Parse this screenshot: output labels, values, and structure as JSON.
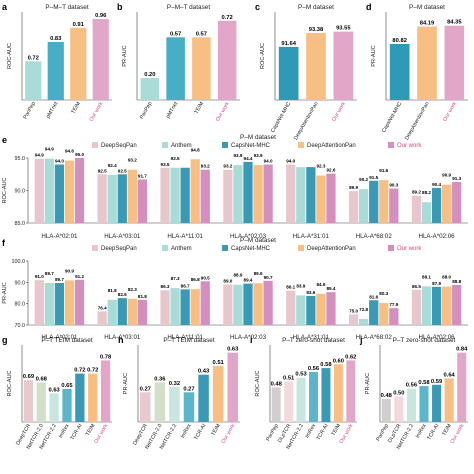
{
  "figure": {
    "panels": [
      {
        "id": "a",
        "letter": "a",
        "title": "P–M–T dataset",
        "ylabel": "ROC-AUC",
        "categories": [
          "PanPep",
          "pMTnet",
          "TEIM",
          "Our work"
        ],
        "values": [
          0.72,
          0.83,
          0.91,
          0.96
        ],
        "labels": [
          "0.72",
          "0.83",
          "0.91",
          "0.96"
        ],
        "colors": [
          "#a9dcd6",
          "#47aec6",
          "#f7bf83",
          "#e2a6c8"
        ],
        "highlight_last": true,
        "ylim": [
          0.5,
          1.0
        ]
      },
      {
        "id": "b",
        "letter": "b",
        "title": "P–M–T dataset",
        "ylabel": "PR-AUC",
        "categories": [
          "PanPep",
          "pMTnet",
          "TEIM",
          "Our work"
        ],
        "values": [
          0.2,
          0.57,
          0.57,
          0.72
        ],
        "labels": [
          "0.20",
          "0.57",
          "0.57",
          "0.72"
        ],
        "colors": [
          "#a9dcd6",
          "#47aec6",
          "#f7bf83",
          "#e2a6c8"
        ],
        "highlight_last": true,
        "ylim": [
          0.0,
          0.8
        ]
      },
      {
        "id": "c",
        "letter": "c",
        "title": "P–M dataset",
        "ylabel": "ROC-AUC",
        "categories": [
          "CapsNet-MHC",
          "DeepAttentionPan",
          "Our work"
        ],
        "values": [
          91.64,
          93.38,
          93.55
        ],
        "labels": [
          "91.64",
          "93.38",
          "93.55"
        ],
        "colors": [
          "#2f9ab8",
          "#f7bf83",
          "#e2a6c8"
        ],
        "highlight_last": true,
        "ylim": [
          85,
          96
        ]
      },
      {
        "id": "d",
        "letter": "d",
        "title": "P–M dataset",
        "ylabel": "PR-AUC",
        "categories": [
          "CapsNet-MHC",
          "DeepAttentionPan",
          "Our work"
        ],
        "values": [
          80.82,
          84.19,
          84.35
        ],
        "labels": [
          "80.82",
          "84.19",
          "84.35"
        ],
        "colors": [
          "#2f9ab8",
          "#f7bf83",
          "#e2a6c8"
        ],
        "highlight_last": true,
        "ylim": [
          70,
          87
        ]
      },
      {
        "id": "g",
        "letter": "g",
        "title": "P–T TEIM dataset",
        "ylabel": "ROC-AUC",
        "categories": [
          "DeepTCR",
          "NetTCR-2.0",
          "NetTCR-2.2",
          "ImRex",
          "TCR-AI",
          "TEIM",
          "Our work"
        ],
        "values": [
          0.69,
          0.68,
          0.63,
          0.65,
          0.72,
          0.72,
          0.78
        ],
        "labels": [
          "0.69",
          "0.68",
          "0.63",
          "0.65",
          "0.72",
          "0.72",
          "0.78"
        ],
        "colors": [
          "#e8c9ce",
          "#d2dfc9",
          "#c8e5df",
          "#5db5c9",
          "#3a99b4",
          "#f7bf83",
          "#e2a6c8"
        ],
        "highlight_last": true,
        "ylim": [
          0.5,
          0.85
        ]
      },
      {
        "id": "h",
        "letter": "h",
        "title": "P–T TEIM dataset",
        "ylabel": "PR-AUC",
        "categories": [
          "DeepTCR",
          "NetTCR-2.0",
          "NetTCR-2.2",
          "ImRex",
          "TCR-AI",
          "TEIM",
          "Our work"
        ],
        "values": [
          0.27,
          0.36,
          0.32,
          0.27,
          0.43,
          0.51,
          0.63
        ],
        "labels": [
          "0.27",
          "0.36",
          "0.32",
          "0.27",
          "0.43",
          "0.51",
          "0.63"
        ],
        "colors": [
          "#e8c9ce",
          "#d2dfc9",
          "#c8e5df",
          "#5db5c9",
          "#3a99b4",
          "#f7bf83",
          "#e2a6c8"
        ],
        "highlight_last": true,
        "ylim": [
          0.0,
          0.7
        ]
      },
      {
        "id": "i",
        "letter": "i",
        "title": "P–T zero-shot dataset",
        "ylabel": "ROC-AUC",
        "categories": [
          "PanPep",
          "DLpTCR",
          "NetTCR-2.2",
          "ImRex",
          "TCR-AI",
          "TEIM",
          "Our work"
        ],
        "values": [
          0.48,
          0.51,
          0.53,
          0.56,
          0.58,
          0.6,
          0.62
        ],
        "labels": [
          "0.48",
          "0.51",
          "0.53",
          "0.56",
          "0.58",
          "0.60",
          "0.62"
        ],
        "colors": [
          "#cfcfcf",
          "#f4d8dc",
          "#c8e5df",
          "#5db5c9",
          "#3a99b4",
          "#f7bf83",
          "#e2a6c8"
        ],
        "highlight_last": true,
        "ylim": [
          0.3,
          0.7
        ]
      },
      {
        "id": "j",
        "letter": "j",
        "title": "P–T zero-shot dataset",
        "ylabel": "PR-AUC",
        "categories": [
          "PanPep",
          "DLpTCR",
          "NetTCR-2.2",
          "ImRex",
          "TCR-AI",
          "TEIM",
          "Our work"
        ],
        "values": [
          0.48,
          0.5,
          0.56,
          0.58,
          0.59,
          0.64,
          0.84
        ],
        "labels": [
          "0.48",
          "0.50",
          "0.56",
          "0.58",
          "0.59",
          "0.64",
          "0.84"
        ],
        "colors": [
          "#cfcfcf",
          "#f4d8dc",
          "#c8e5df",
          "#5db5c9",
          "#3a99b4",
          "#f7bf83",
          "#e2a6c8"
        ],
        "highlight_last": true,
        "ylim": [
          0.3,
          0.9
        ]
      }
    ],
    "grouped": [
      {
        "id": "e",
        "letter": "e",
        "title": "P–M dataset",
        "ylabel": "ROC-AUC",
        "legend": [
          "DeepSeqPan",
          "Anthem",
          "CapsNet-MHC",
          "DeepAttentionPan",
          "Our work"
        ],
        "legend_colors": [
          "#e7c7cc",
          "#a9dcd6",
          "#3a99b4",
          "#f7bf83",
          "#d58fbf"
        ],
        "categories": [
          "HLA-A*02:01",
          "HLA-A*03:01",
          "HLA-A*11:01",
          "HLA-A*02:03",
          "HLA-A*31:01",
          "HLA-A*68:02",
          "HLA-A*02:06"
        ],
        "values": [
          [
            94.9,
            94.9,
            94.0,
            94.6,
            95.0
          ],
          [
            92.5,
            92.4,
            92.5,
            93.2,
            91.7
          ],
          [
            93.5,
            93.5,
            93.5,
            94.8,
            93.2
          ],
          [
            93.2,
            93.9,
            94.4,
            93.9,
            94.0
          ],
          [
            94.0,
            93.6,
            93.6,
            92.3,
            92.6
          ],
          [
            89.9,
            90.2,
            91.5,
            91.6,
            90.3
          ],
          [
            89.2,
            88.2,
            90.4,
            90.9,
            91.3
          ]
        ],
        "labels": [
          [
            "94.9",
            "94.9",
            "94.0",
            "94.6",
            "95.0"
          ],
          [
            "92.5",
            "92.4",
            "92.5",
            "93.2",
            "91.7"
          ],
          [
            "93.5",
            "93.5",
            "",
            "94.8",
            "93.2"
          ],
          [
            "93.2",
            "93.9",
            "94.4",
            "93.9",
            "94.0"
          ],
          [
            "94.0",
            "",
            "",
            "92.3",
            "92.6"
          ],
          [
            "89.9",
            "90.2",
            "91.5",
            "91.6",
            "90.3"
          ],
          [
            "89.2",
            "88.2",
            "90.4",
            "90.9",
            "91.3"
          ]
        ],
        "ylim": [
          85.0,
          95.0
        ],
        "yticks": [
          85.0,
          90.0,
          95.0
        ],
        "ytick_labels": [
          "85.0",
          "90.0",
          "95.0"
        ]
      },
      {
        "id": "f",
        "letter": "f",
        "title": "P–M dataset",
        "ylabel": "PR-AUC",
        "legend": [
          "DeepSeqPan",
          "Anthem",
          "CapsNet-MHC",
          "DeepAttentionPan",
          "Our work"
        ],
        "legend_colors": [
          "#e7c7cc",
          "#a9dcd6",
          "#3a99b4",
          "#f7bf83",
          "#d58fbf"
        ],
        "categories": [
          "HLA-A*02:01",
          "HLA-A*03:01",
          "HLA-A*11:01",
          "HLA-A*02:03",
          "HLA-A*31:01",
          "HLA-A*68:02",
          "HLA-A*02:06"
        ],
        "values": [
          [
            91.0,
            89.7,
            89.7,
            90.9,
            91.2
          ],
          [
            76.4,
            81.8,
            82.6,
            82.3,
            81.8
          ],
          [
            86.3,
            87.3,
            86.7,
            86.8,
            90.5
          ],
          [
            89.0,
            88.9,
            89.4,
            89.6,
            90.7
          ],
          [
            86.1,
            83.9,
            83.6,
            84.6,
            85.4
          ],
          [
            75.0,
            72.8,
            81.6,
            80.3,
            77.9
          ],
          [
            86.5,
            88.1,
            87.9,
            88.0,
            88.8
          ]
        ],
        "labels": [
          [
            "91.0",
            "89.7",
            "89.7",
            "90.9",
            "91.2"
          ],
          [
            "76.4",
            "81.8",
            "82.6",
            "82.3",
            "81.8"
          ],
          [
            "86.3",
            "87.3",
            "86.7",
            "86.8",
            "90.5"
          ],
          [
            "89.0",
            "88.9",
            "89.4",
            "89.6",
            "90.7"
          ],
          [
            "86.1",
            "83.9",
            "83.6",
            "84.6",
            "85.4"
          ],
          [
            "75.0",
            "72.8",
            "81.6",
            "80.3",
            "77.9"
          ],
          [
            "86.5",
            "88.1",
            "87.9",
            "88.0",
            "88.8"
          ]
        ],
        "ylim": [
          70.0,
          100.0
        ],
        "yticks": [
          70.0,
          80.0,
          90.0,
          100.0
        ],
        "ytick_labels": [
          "70.0",
          "80.0",
          "90.0",
          "100.0"
        ]
      }
    ]
  },
  "chart_data": [
    {
      "type": "bar",
      "title": "P–M–T dataset",
      "ylabel": "ROC-AUC",
      "categories": [
        "PanPep",
        "pMTnet",
        "TEIM",
        "Our work"
      ],
      "values": [
        0.72,
        0.83,
        0.91,
        0.96
      ],
      "ylim": [
        0.5,
        1.0
      ]
    },
    {
      "type": "bar",
      "title": "P–M–T dataset",
      "ylabel": "PR-AUC",
      "categories": [
        "PanPep",
        "pMTnet",
        "TEIM",
        "Our work"
      ],
      "values": [
        0.2,
        0.57,
        0.57,
        0.72
      ],
      "ylim": [
        0.0,
        0.8
      ]
    },
    {
      "type": "bar",
      "title": "P–M dataset",
      "ylabel": "ROC-AUC",
      "categories": [
        "CapsNet-MHC",
        "DeepAttentionPan",
        "Our work"
      ],
      "values": [
        91.64,
        93.38,
        93.55
      ],
      "ylim": [
        85,
        96
      ]
    },
    {
      "type": "bar",
      "title": "P–M dataset",
      "ylabel": "PR-AUC",
      "categories": [
        "CapsNet-MHC",
        "DeepAttentionPan",
        "Our work"
      ],
      "values": [
        80.82,
        84.19,
        84.35
      ],
      "ylim": [
        70,
        87
      ]
    },
    {
      "type": "bar",
      "title": "P–M dataset",
      "ylabel": "ROC-AUC",
      "categories": [
        "HLA-A*02:01",
        "HLA-A*03:01",
        "HLA-A*11:01",
        "HLA-A*02:03",
        "HLA-A*31:01",
        "HLA-A*68:02",
        "HLA-A*02:06"
      ],
      "series": [
        {
          "name": "DeepSeqPan",
          "values": [
            94.9,
            92.5,
            93.5,
            93.2,
            94.0,
            89.9,
            89.2
          ]
        },
        {
          "name": "Anthem",
          "values": [
            94.9,
            92.4,
            93.5,
            93.9,
            93.6,
            90.2,
            88.2
          ]
        },
        {
          "name": "CapsNet-MHC",
          "values": [
            94.0,
            92.5,
            93.5,
            94.4,
            93.6,
            91.5,
            90.4
          ]
        },
        {
          "name": "DeepAttentionPan",
          "values": [
            94.6,
            93.2,
            94.8,
            93.9,
            92.3,
            91.6,
            90.9
          ]
        },
        {
          "name": "Our work",
          "values": [
            95.0,
            91.7,
            93.2,
            94.0,
            92.6,
            90.3,
            91.3
          ]
        }
      ],
      "ylim": [
        85.0,
        95.0
      ],
      "legend": "top-right"
    },
    {
      "type": "bar",
      "title": "P–M dataset",
      "ylabel": "PR-AUC",
      "categories": [
        "HLA-A*02:01",
        "HLA-A*03:01",
        "HLA-A*11:01",
        "HLA-A*02:03",
        "HLA-A*31:01",
        "HLA-A*68:02",
        "HLA-A*02:06"
      ],
      "series": [
        {
          "name": "DeepSeqPan",
          "values": [
            91.0,
            76.4,
            86.3,
            89.0,
            86.1,
            75.0,
            86.5
          ]
        },
        {
          "name": "Anthem",
          "values": [
            89.7,
            81.8,
            87.3,
            88.9,
            83.9,
            72.8,
            88.1
          ]
        },
        {
          "name": "CapsNet-MHC",
          "values": [
            89.7,
            82.6,
            86.7,
            89.4,
            83.6,
            81.6,
            87.9
          ]
        },
        {
          "name": "DeepAttentionPan",
          "values": [
            90.9,
            82.3,
            86.8,
            89.6,
            84.6,
            80.3,
            88.0
          ]
        },
        {
          "name": "Our work",
          "values": [
            91.2,
            81.8,
            90.5,
            90.7,
            85.4,
            77.9,
            88.8
          ]
        }
      ],
      "ylim": [
        70.0,
        100.0
      ],
      "legend": "top-right"
    },
    {
      "type": "bar",
      "title": "P–T TEIM dataset",
      "ylabel": "ROC-AUC",
      "categories": [
        "DeepTCR",
        "NetTCR-2.0",
        "NetTCR-2.2",
        "ImRex",
        "TCR-AI",
        "TEIM",
        "Our work"
      ],
      "values": [
        0.69,
        0.68,
        0.63,
        0.65,
        0.72,
        0.72,
        0.78
      ]
    },
    {
      "type": "bar",
      "title": "P–T TEIM dataset",
      "ylabel": "PR-AUC",
      "categories": [
        "DeepTCR",
        "NetTCR-2.0",
        "NetTCR-2.2",
        "ImRex",
        "TCR-AI",
        "TEIM",
        "Our work"
      ],
      "values": [
        0.27,
        0.36,
        0.32,
        0.27,
        0.43,
        0.51,
        0.63
      ]
    },
    {
      "type": "bar",
      "title": "P–T zero-shot dataset",
      "ylabel": "ROC-AUC",
      "categories": [
        "PanPep",
        "DLpTCR",
        "NetTCR-2.2",
        "ImRex",
        "TCR-AI",
        "TEIM",
        "Our work"
      ],
      "values": [
        0.48,
        0.51,
        0.53,
        0.56,
        0.58,
        0.6,
        0.62
      ]
    },
    {
      "type": "bar",
      "title": "P–T zero-shot dataset",
      "ylabel": "PR-AUC",
      "categories": [
        "PanPep",
        "DLpTCR",
        "NetTCR-2.2",
        "ImRex",
        "TCR-AI",
        "TEIM",
        "Our work"
      ],
      "values": [
        0.48,
        0.5,
        0.56,
        0.58,
        0.59,
        0.64,
        0.84
      ]
    }
  ]
}
